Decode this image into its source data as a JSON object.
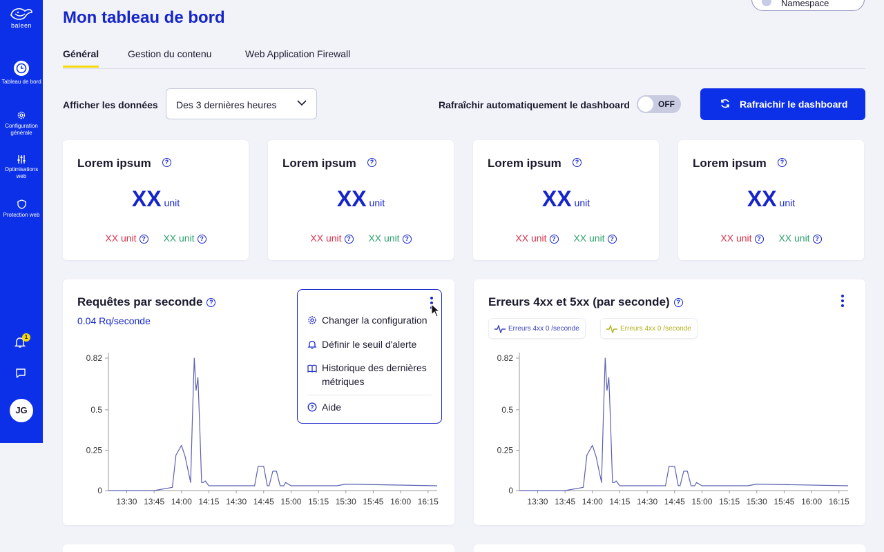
{
  "sidebar": {
    "logo_text": "baleen",
    "items": [
      {
        "label": "Tableau de bord",
        "icon": "clock-icon",
        "active": true
      },
      {
        "label": "Configuration générale",
        "icon": "gear-icon",
        "active": false
      },
      {
        "label": "Optimisations web",
        "icon": "sliders-icon",
        "active": false
      },
      {
        "label": "Protection web",
        "icon": "shield-icon",
        "active": false
      }
    ],
    "notification_count": "1",
    "avatar_initials": "JG"
  },
  "header": {
    "title": "Mon tableau de bord",
    "namespace_label": "Namespace"
  },
  "tabs": [
    {
      "label": "Général",
      "active": true
    },
    {
      "label": "Gestion du contenu",
      "active": false
    },
    {
      "label": "Web Application Firewall",
      "active": false
    }
  ],
  "filters": {
    "display_label": "Afficher les données",
    "period_value": "Des 3 dernières heures",
    "auto_refresh_label": "Rafraîchir automatiquement le dashboard",
    "auto_refresh_state": "OFF",
    "refresh_button": "Rafraichir le dashboard"
  },
  "stat_cards": [
    {
      "title": "Lorem ipsum",
      "value": "XX",
      "unit": "unit",
      "red_value": "XX unit",
      "green_value": "XX unit"
    },
    {
      "title": "Lorem ipsum",
      "value": "XX",
      "unit": "unit",
      "red_value": "XX unit",
      "green_value": "XX unit"
    },
    {
      "title": "Lorem ipsum",
      "value": "XX",
      "unit": "unit",
      "red_value": "XX unit",
      "green_value": "XX unit"
    },
    {
      "title": "Lorem ipsum",
      "value": "XX",
      "unit": "unit",
      "red_value": "XX unit",
      "green_value": "XX unit"
    }
  ],
  "charts": [
    {
      "title": "Requêtes par seconde",
      "subtitle": "0.04 Rq/seconde"
    },
    {
      "title": "Erreurs 4xx et 5xx (par seconde)",
      "legend": [
        {
          "label": "Erreurs 4xx 0 /seconde",
          "color": "#3a44b8"
        },
        {
          "label": "Erreurs 4xx 0 /seconde",
          "color": "#b0b020"
        }
      ]
    }
  ],
  "menu": {
    "items": [
      {
        "label": "Changer la configuration",
        "icon": "gear-icon"
      },
      {
        "label": "Définir le seuil d'alerte",
        "icon": "bell-icon"
      },
      {
        "label": "Historique des dernières métriques",
        "icon": "book-icon"
      },
      {
        "label": "Aide",
        "icon": "help-icon"
      }
    ]
  },
  "colors": {
    "primary": "#0c2fe8",
    "title_blue": "#1525c9",
    "accent_yellow": "#f5d90a",
    "error_red": "#d9304a",
    "ok_green": "#2ba06b",
    "line": "#5a5fb0"
  },
  "chart_data": [
    {
      "type": "line",
      "title": "Requêtes par seconde",
      "x": [
        "13:20",
        "13:30",
        "13:45",
        "13:55",
        "13:57",
        "14:00",
        "14:02",
        "14:05",
        "14:06",
        "14:07",
        "14:08",
        "14:09",
        "14:10",
        "14:11",
        "14:12",
        "14:13",
        "14:15",
        "14:20",
        "14:30",
        "14:40",
        "14:42",
        "14:45",
        "14:47",
        "14:48",
        "14:50",
        "14:52",
        "14:54",
        "14:56",
        "14:57",
        "15:00",
        "15:05",
        "15:25",
        "15:30",
        "16:20"
      ],
      "series": [
        {
          "values": [
            0,
            0,
            0,
            0.02,
            0.22,
            0.28,
            0.21,
            0.05,
            0.45,
            0.82,
            0.62,
            0.7,
            0.4,
            0.05,
            0.05,
            0.06,
            0.03,
            0.03,
            0.03,
            0.03,
            0.15,
            0.15,
            0.03,
            0.03,
            0.12,
            0.12,
            0.03,
            0.03,
            0.05,
            0.03,
            0.03,
            0.03,
            0.04,
            0.03
          ]
        }
      ],
      "yticks": [
        "0",
        "0.25",
        "0.5",
        "0.82"
      ],
      "xticks": [
        "13:30",
        "13:45",
        "14:00",
        "14:15",
        "14:30",
        "14:45",
        "15:00",
        "15:15",
        "15:30",
        "15:45",
        "16:00",
        "16:15"
      ],
      "ylim": [
        0,
        0.82
      ]
    },
    {
      "type": "line",
      "title": "Erreurs 4xx et 5xx (par seconde)",
      "x": [
        "13:20",
        "13:30",
        "13:45",
        "13:55",
        "13:57",
        "14:00",
        "14:02",
        "14:05",
        "14:06",
        "14:07",
        "14:08",
        "14:09",
        "14:10",
        "14:11",
        "14:12",
        "14:13",
        "14:15",
        "14:20",
        "14:30",
        "14:40",
        "14:42",
        "14:45",
        "14:47",
        "14:48",
        "14:50",
        "14:52",
        "14:54",
        "14:56",
        "14:57",
        "15:00",
        "15:05",
        "15:25",
        "15:30",
        "16:20"
      ],
      "series": [
        {
          "values": [
            0,
            0,
            0,
            0.02,
            0.22,
            0.28,
            0.21,
            0.05,
            0.45,
            0.82,
            0.62,
            0.7,
            0.4,
            0.05,
            0.05,
            0.06,
            0.03,
            0.03,
            0.03,
            0.03,
            0.15,
            0.15,
            0.03,
            0.03,
            0.12,
            0.12,
            0.03,
            0.03,
            0.05,
            0.03,
            0.03,
            0.03,
            0.04,
            0.03
          ]
        }
      ],
      "yticks": [
        "0",
        "0.25",
        "0.5",
        "0.82"
      ],
      "xticks": [
        "13:30",
        "13:45",
        "14:00",
        "14:15",
        "14:30",
        "14:45",
        "15:00",
        "15:15",
        "15:30",
        "15:45",
        "16:00",
        "16:15"
      ],
      "ylim": [
        0,
        0.82
      ]
    }
  ]
}
